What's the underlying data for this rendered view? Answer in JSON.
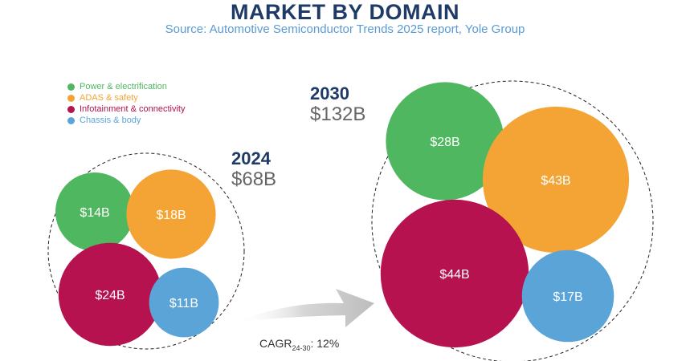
{
  "header": {
    "title": "MARKET BY DOMAIN",
    "subtitle": "Source: Automotive Semiconductor Trends 2025 report, Yole Group"
  },
  "cagr": {
    "label": "CAGR",
    "sub": "24-30",
    "value": ": 12%"
  },
  "chart_data": {
    "type": "bubble",
    "series": [
      {
        "name": "Power & electrification",
        "color": "#4fb760"
      },
      {
        "name": "ADAS & safety",
        "color": "#f4a434"
      },
      {
        "name": "Infotainment & connectivity",
        "color": "#b5124f"
      },
      {
        "name": "Chassis & body",
        "color": "#5ba4d8"
      }
    ],
    "groups": [
      {
        "year": "2024",
        "total": "$68B",
        "values": [
          14,
          18,
          24,
          11
        ],
        "labels": [
          "$14B",
          "$18B",
          "$24B",
          "$11B"
        ]
      },
      {
        "year": "2030",
        "total": "$132B",
        "values": [
          28,
          43,
          44,
          17
        ],
        "labels": [
          "$28B",
          "$43B",
          "$44B",
          "$17B"
        ]
      }
    ]
  }
}
